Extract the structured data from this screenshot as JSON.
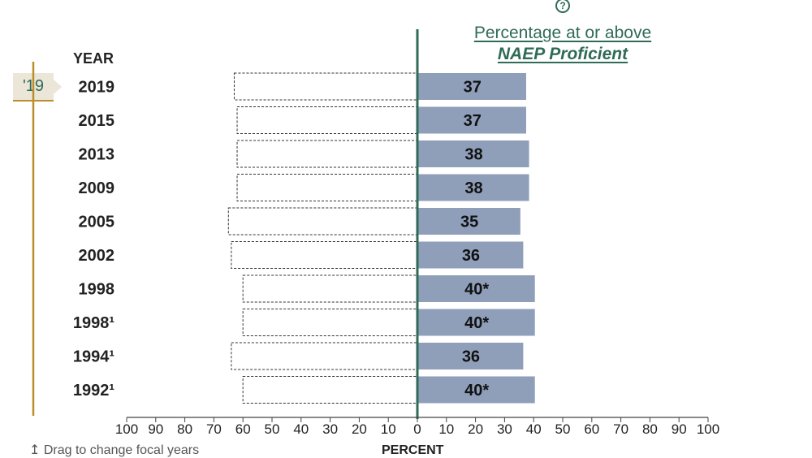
{
  "header": {
    "line1": "Percentage at or above",
    "line2": "NAEP Proficient",
    "help_glyph": "?"
  },
  "year_header": "YEAR",
  "focal_badge": "'19",
  "drag_hint": "↥ Drag to change focal years",
  "axis_title": "PERCENT",
  "colors": {
    "bar_fill": "#8f9fba",
    "center_line": "#2f6b57",
    "timeline": "#b98f2b",
    "accent": "#2f6b57"
  },
  "chart_data": {
    "type": "bar",
    "orientation": "horizontal",
    "categories": [
      "2019",
      "2015",
      "2013",
      "2009",
      "2005",
      "2002",
      "1998",
      "1998¹",
      "1994¹",
      "1992¹"
    ],
    "series": [
      {
        "values": [
          37,
          37,
          38,
          38,
          35,
          36,
          40,
          40,
          36,
          40
        ]
      }
    ],
    "value_labels": [
      "37",
      "37",
      "38",
      "38",
      "35",
      "36",
      "40*",
      "40*",
      "36",
      "40*"
    ],
    "below_values": [
      63,
      62,
      62,
      62,
      65,
      64,
      60,
      60,
      64,
      60
    ],
    "x_ticks": [
      "100",
      "90",
      "80",
      "70",
      "60",
      "50",
      "40",
      "30",
      "20",
      "10",
      "0",
      "10",
      "20",
      "30",
      "40",
      "50",
      "60",
      "70",
      "80",
      "90",
      "100"
    ],
    "xlim": [
      -100,
      100
    ]
  }
}
